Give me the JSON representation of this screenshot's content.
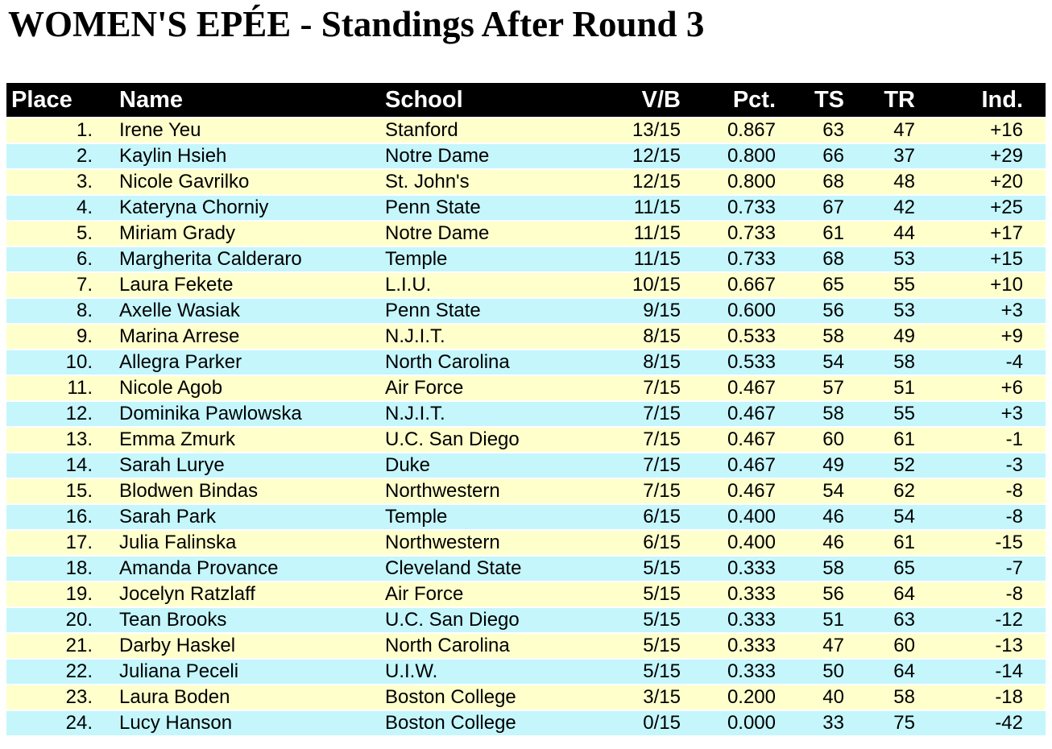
{
  "title": "WOMEN'S EPÉE - Standings After Round 3",
  "colors": {
    "page_bg": "#FFFFFF",
    "header_bg": "#000000",
    "header_text": "#FFFFFF",
    "row_yellow": "#FFFFCC",
    "row_cyan": "#C4F6FC",
    "text": "#000000"
  },
  "table": {
    "columns": [
      {
        "key": "place",
        "label": "Place"
      },
      {
        "key": "name",
        "label": "Name"
      },
      {
        "key": "school",
        "label": "School"
      },
      {
        "key": "vb",
        "label": "V/B"
      },
      {
        "key": "pct",
        "label": "Pct."
      },
      {
        "key": "ts",
        "label": "TS"
      },
      {
        "key": "tr",
        "label": "TR"
      },
      {
        "key": "ind",
        "label": "Ind."
      }
    ],
    "rows": [
      {
        "place": "1.",
        "name": "Irene Yeu",
        "school": "Stanford",
        "vb": "13/15",
        "pct": "0.867",
        "ts": "63",
        "tr": "47",
        "ind": "+16"
      },
      {
        "place": "2.",
        "name": "Kaylin Hsieh",
        "school": "Notre Dame",
        "vb": "12/15",
        "pct": "0.800",
        "ts": "66",
        "tr": "37",
        "ind": "+29"
      },
      {
        "place": "3.",
        "name": "Nicole Gavrilko",
        "school": "St. John's",
        "vb": "12/15",
        "pct": "0.800",
        "ts": "68",
        "tr": "48",
        "ind": "+20"
      },
      {
        "place": "4.",
        "name": "Kateryna Chorniy",
        "school": "Penn State",
        "vb": "11/15",
        "pct": "0.733",
        "ts": "67",
        "tr": "42",
        "ind": "+25"
      },
      {
        "place": "5.",
        "name": "Miriam Grady",
        "school": "Notre Dame",
        "vb": "11/15",
        "pct": "0.733",
        "ts": "61",
        "tr": "44",
        "ind": "+17"
      },
      {
        "place": "6.",
        "name": "Margherita Calderaro",
        "school": "Temple",
        "vb": "11/15",
        "pct": "0.733",
        "ts": "68",
        "tr": "53",
        "ind": "+15"
      },
      {
        "place": "7.",
        "name": "Laura Fekete",
        "school": "L.I.U.",
        "vb": "10/15",
        "pct": "0.667",
        "ts": "65",
        "tr": "55",
        "ind": "+10"
      },
      {
        "place": "8.",
        "name": "Axelle Wasiak",
        "school": "Penn State",
        "vb": "9/15",
        "pct": "0.600",
        "ts": "56",
        "tr": "53",
        "ind": "+3"
      },
      {
        "place": "9.",
        "name": "Marina Arrese",
        "school": "N.J.I.T.",
        "vb": "8/15",
        "pct": "0.533",
        "ts": "58",
        "tr": "49",
        "ind": "+9"
      },
      {
        "place": "10.",
        "name": "Allegra Parker",
        "school": "North Carolina",
        "vb": "8/15",
        "pct": "0.533",
        "ts": "54",
        "tr": "58",
        "ind": "-4"
      },
      {
        "place": "11.",
        "name": "Nicole Agob",
        "school": "Air Force",
        "vb": "7/15",
        "pct": "0.467",
        "ts": "57",
        "tr": "51",
        "ind": "+6"
      },
      {
        "place": "12.",
        "name": "Dominika Pawlowska",
        "school": "N.J.I.T.",
        "vb": "7/15",
        "pct": "0.467",
        "ts": "58",
        "tr": "55",
        "ind": "+3"
      },
      {
        "place": "13.",
        "name": "Emma Zmurk",
        "school": "U.C. San Diego",
        "vb": "7/15",
        "pct": "0.467",
        "ts": "60",
        "tr": "61",
        "ind": "-1"
      },
      {
        "place": "14.",
        "name": "Sarah Lurye",
        "school": "Duke",
        "vb": "7/15",
        "pct": "0.467",
        "ts": "49",
        "tr": "52",
        "ind": "-3"
      },
      {
        "place": "15.",
        "name": "Blodwen Bindas",
        "school": "Northwestern",
        "vb": "7/15",
        "pct": "0.467",
        "ts": "54",
        "tr": "62",
        "ind": "-8"
      },
      {
        "place": "16.",
        "name": "Sarah Park",
        "school": "Temple",
        "vb": "6/15",
        "pct": "0.400",
        "ts": "46",
        "tr": "54",
        "ind": "-8"
      },
      {
        "place": "17.",
        "name": "Julia Falinska",
        "school": "Northwestern",
        "vb": "6/15",
        "pct": "0.400",
        "ts": "46",
        "tr": "61",
        "ind": "-15"
      },
      {
        "place": "18.",
        "name": "Amanda Provance",
        "school": "Cleveland State",
        "vb": "5/15",
        "pct": "0.333",
        "ts": "58",
        "tr": "65",
        "ind": "-7"
      },
      {
        "place": "19.",
        "name": "Jocelyn Ratzlaff",
        "school": "Air Force",
        "vb": "5/15",
        "pct": "0.333",
        "ts": "56",
        "tr": "64",
        "ind": "-8"
      },
      {
        "place": "20.",
        "name": "Tean Brooks",
        "school": "U.C. San Diego",
        "vb": "5/15",
        "pct": "0.333",
        "ts": "51",
        "tr": "63",
        "ind": "-12"
      },
      {
        "place": "21.",
        "name": "Darby Haskel",
        "school": "North Carolina",
        "vb": "5/15",
        "pct": "0.333",
        "ts": "47",
        "tr": "60",
        "ind": "-13"
      },
      {
        "place": "22.",
        "name": "Juliana Peceli",
        "school": "U.I.W.",
        "vb": "5/15",
        "pct": "0.333",
        "ts": "50",
        "tr": "64",
        "ind": "-14"
      },
      {
        "place": "23.",
        "name": "Laura Boden",
        "school": "Boston College",
        "vb": "3/15",
        "pct": "0.200",
        "ts": "40",
        "tr": "58",
        "ind": "-18"
      },
      {
        "place": "24.",
        "name": "Lucy Hanson",
        "school": "Boston College",
        "vb": "0/15",
        "pct": "0.000",
        "ts": "33",
        "tr": "75",
        "ind": "-42"
      }
    ]
  }
}
